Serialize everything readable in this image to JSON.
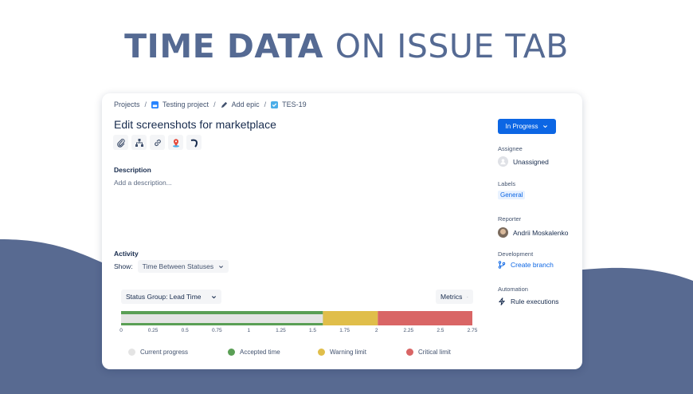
{
  "hero": {
    "title_bold": "TIME DATA",
    "title_light": "ON ISSUE TAB"
  },
  "breadcrumb": {
    "projects": "Projects",
    "project": "Testing project",
    "epic": "Add epic",
    "issue_key": "TES-19",
    "separator": "/"
  },
  "issue": {
    "title": "Edit screenshots for marketplace"
  },
  "toolbar": {
    "icons": [
      "attachment-icon",
      "child-issues-icon",
      "link-icon",
      "map-pin-icon",
      "curve-icon"
    ]
  },
  "description": {
    "label": "Description",
    "placeholder": "Add a description..."
  },
  "activity": {
    "label": "Activity",
    "show_label": "Show:",
    "show_value": "Time Between Statuses"
  },
  "chart": {
    "status_group": "Status Group: Lead Time",
    "metrics_label": "Metrics"
  },
  "chart_data": {
    "type": "bar",
    "orientation": "horizontal",
    "ticks": [
      "0",
      "0.25",
      "0.5",
      "0.75",
      "1",
      "1.25",
      "1.5",
      "1.75",
      "2",
      "2.25",
      "2.5",
      "2.75"
    ],
    "xlim": [
      0,
      2.75
    ],
    "segments": [
      {
        "name": "Accepted time",
        "start": 0,
        "end": 1.58,
        "color": "#5a9f55"
      },
      {
        "name": "Warning limit",
        "start": 1.58,
        "end": 2.01,
        "color": "#e0be4a"
      },
      {
        "name": "Critical limit",
        "start": 2.01,
        "end": 2.75,
        "color": "#d96565"
      }
    ],
    "current_progress": {
      "name": "Current progress",
      "value": 1.58,
      "color": "#e4e4e4"
    },
    "legend": [
      {
        "name": "Current progress",
        "color": "#e4e4e4"
      },
      {
        "name": "Accepted time",
        "color": "#5a9f55"
      },
      {
        "name": "Warning limit",
        "color": "#e0be4a"
      },
      {
        "name": "Critical limit",
        "color": "#d96565"
      }
    ],
    "legend_position": "bottom"
  },
  "sidebar": {
    "status": "In Progress",
    "assignee_label": "Assignee",
    "assignee_value": "Unassigned",
    "labels_label": "Labels",
    "labels_value": "General",
    "reporter_label": "Reporter",
    "reporter_value": "Andrii Moskalenko",
    "development_label": "Development",
    "development_value": "Create branch",
    "automation_label": "Automation",
    "automation_value": "Rule executions"
  },
  "colors": {
    "accent": "#0c66e4",
    "hero": "#556a93",
    "wave": "#586a91"
  }
}
